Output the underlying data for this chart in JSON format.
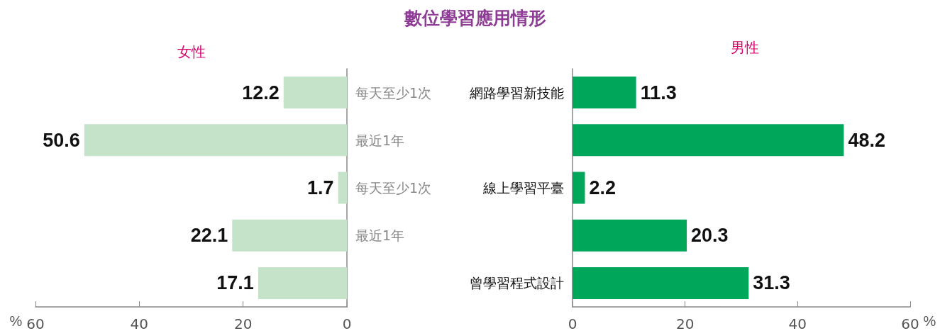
{
  "chart_data": [
    {
      "type": "bar",
      "orientation": "horizontal",
      "title": "數位學習應用情形",
      "subtitle": "女性",
      "categories": [
        "每天至少1次",
        "最近1年",
        "每天至少1次",
        "最近1年",
        null
      ],
      "values": [
        12.2,
        50.6,
        1.7,
        22.1,
        17.1
      ],
      "color": "#c5e3c9",
      "xlim": [
        60,
        0
      ],
      "xticks": [
        60,
        40,
        20,
        0
      ],
      "xlabel": "%",
      "data_labels": true
    },
    {
      "type": "bar",
      "orientation": "horizontal",
      "subtitle": "男性",
      "categories": [
        "網路學習新技能",
        null,
        "線上學習平臺",
        null,
        "曾學習程式設計"
      ],
      "values": [
        11.3,
        48.2,
        2.2,
        20.3,
        31.3
      ],
      "color": "#00a65a",
      "xlim": [
        0,
        60
      ],
      "xticks": [
        0,
        20,
        40,
        60
      ],
      "xlabel": "%",
      "data_labels": true
    }
  ]
}
